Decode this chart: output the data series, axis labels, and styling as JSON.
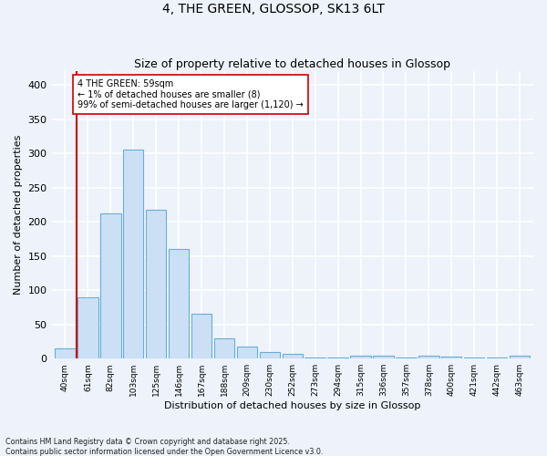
{
  "title1": "4, THE GREEN, GLOSSOP, SK13 6LT",
  "title2": "Size of property relative to detached houses in Glossop",
  "xlabel": "Distribution of detached houses by size in Glossop",
  "ylabel": "Number of detached properties",
  "bar_labels": [
    "40sqm",
    "61sqm",
    "82sqm",
    "103sqm",
    "125sqm",
    "146sqm",
    "167sqm",
    "188sqm",
    "209sqm",
    "230sqm",
    "252sqm",
    "273sqm",
    "294sqm",
    "315sqm",
    "336sqm",
    "357sqm",
    "378sqm",
    "400sqm",
    "421sqm",
    "442sqm",
    "463sqm"
  ],
  "bar_values": [
    15,
    90,
    212,
    305,
    218,
    160,
    65,
    30,
    18,
    10,
    7,
    2,
    2,
    4,
    4,
    2,
    4,
    3,
    2,
    2,
    4
  ],
  "bar_color": "#cce0f5",
  "bar_edge_color": "#6aaed6",
  "highlight_color": "#cc0000",
  "annotation_text": "4 THE GREEN: 59sqm\n← 1% of detached houses are smaller (8)\n99% of semi-detached houses are larger (1,120) →",
  "annotation_box_color": "#ffffff",
  "annotation_box_edge": "#cc0000",
  "background_color": "#edf2fb",
  "grid_color": "#ffffff",
  "footer_line1": "Contains HM Land Registry data © Crown copyright and database right 2025.",
  "footer_line2": "Contains public sector information licensed under the Open Government Licence v3.0.",
  "ylim": [
    0,
    420
  ],
  "yticks": [
    0,
    50,
    100,
    150,
    200,
    250,
    300,
    350,
    400
  ]
}
